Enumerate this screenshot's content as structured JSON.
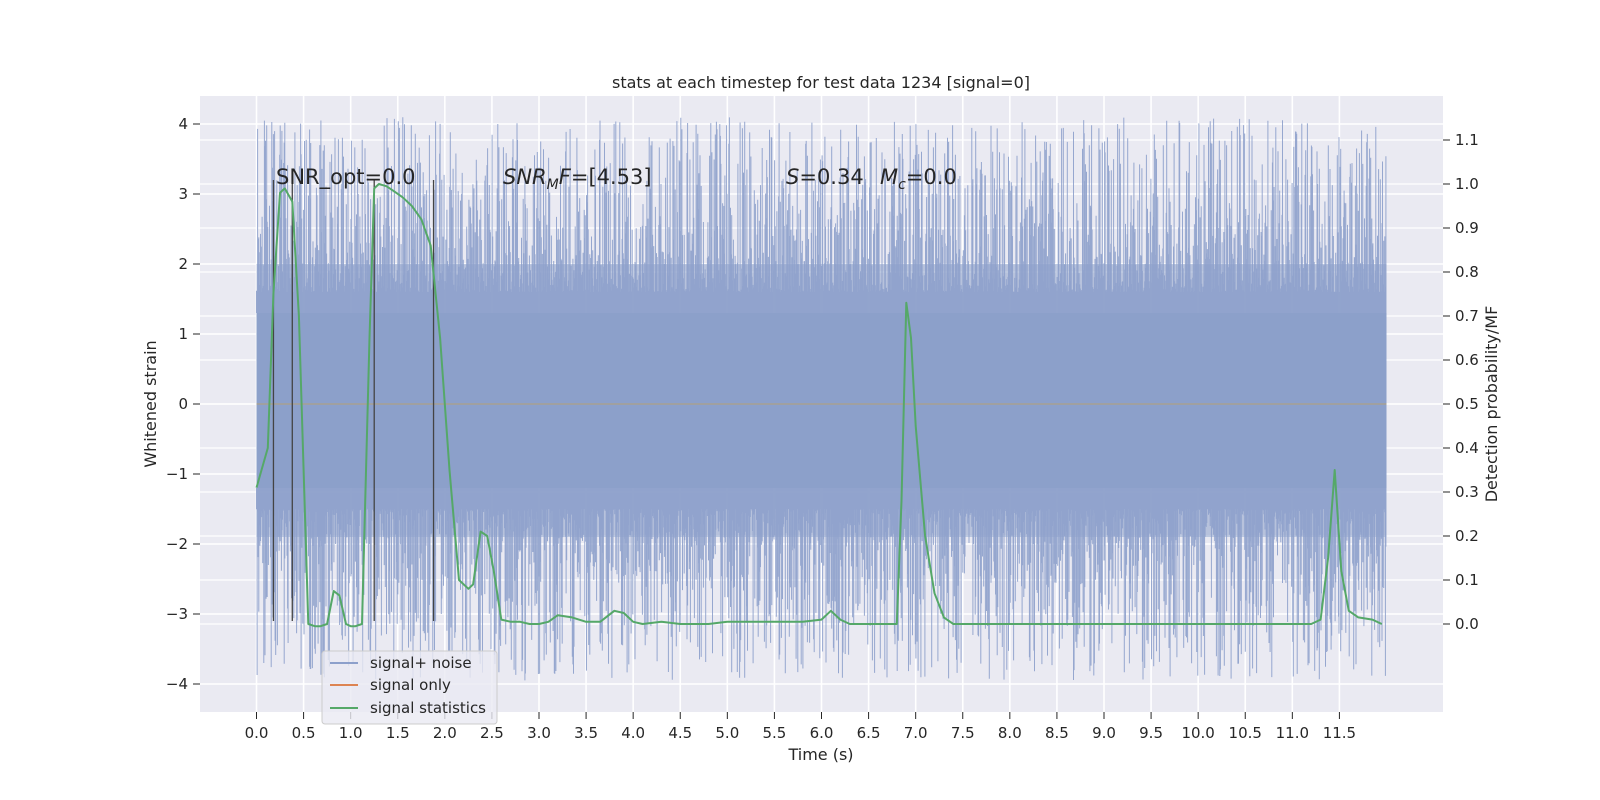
{
  "chart_data": {
    "type": "line",
    "title": "stats at each timestep for test data 1234 [signal=0]",
    "xlabel": "Time (s)",
    "ylabel": "Whitened strain",
    "y2label": "Detection probability/MF",
    "xlim": [
      -0.6,
      12.6
    ],
    "ylim": [
      -4.4,
      4.4
    ],
    "y2lim": [
      -0.2,
      1.2
    ],
    "grid": true,
    "x_ticks": [
      "0.0",
      "0.5",
      "1.0",
      "1.5",
      "2.0",
      "2.5",
      "3.0",
      "3.5",
      "4.0",
      "4.5",
      "5.0",
      "5.5",
      "6.0",
      "6.5",
      "7.0",
      "7.5",
      "8.0",
      "8.5",
      "9.0",
      "9.5",
      "10.0",
      "10.5",
      "11.0",
      "11.5"
    ],
    "y_ticks": [
      "−4",
      "−3",
      "−2",
      "−1",
      "0",
      "1",
      "2",
      "3",
      "4"
    ],
    "y2_ticks": [
      "0.0",
      "0.1",
      "0.2",
      "0.3",
      "0.4",
      "0.5",
      "0.6",
      "0.7",
      "0.8",
      "0.9",
      "1.0",
      "1.1"
    ],
    "legend_position": "lower-left",
    "annotations": {
      "snr_opt": "SNR_opt=0.0",
      "snr_mf": "[4.53]",
      "s_value": "=0.34",
      "mc_value": "=0.0"
    },
    "noise_band": {
      "x_start": 0.0,
      "x_end": 12.0,
      "typical_upper": 2.0,
      "typical_lower": -1.9,
      "dense_upper": 1.3,
      "dense_lower": -1.2,
      "max_value": 4.1,
      "min_value": -3.95
    },
    "markers_x": [
      0.18,
      0.38,
      1.25,
      1.88
    ],
    "marker_range": [
      -3.1,
      3.2
    ],
    "series": [
      {
        "name": "signal+ noise",
        "color": "#8da0cb",
        "values": "noise band (0–12 s)"
      },
      {
        "name": "signal only",
        "color": "#dd8452",
        "x": [
          0.0,
          12.0
        ],
        "y": [
          0.0,
          0.0
        ]
      },
      {
        "name": "signal statistics",
        "color": "#55a868",
        "axis": "y2",
        "x": [
          0.0,
          0.12,
          0.18,
          0.25,
          0.3,
          0.38,
          0.45,
          0.55,
          0.62,
          0.68,
          0.75,
          0.82,
          0.88,
          0.95,
          1.0,
          1.05,
          1.12,
          1.2,
          1.25,
          1.3,
          1.38,
          1.45,
          1.55,
          1.65,
          1.75,
          1.85,
          1.95,
          2.05,
          2.15,
          2.25,
          2.3,
          2.38,
          2.45,
          2.52,
          2.6,
          2.7,
          2.8,
          2.9,
          3.0,
          3.1,
          3.2,
          3.35,
          3.5,
          3.65,
          3.8,
          3.9,
          4.0,
          4.1,
          4.3,
          4.5,
          4.8,
          5.0,
          5.2,
          5.5,
          5.8,
          6.0,
          6.1,
          6.2,
          6.3,
          6.5,
          6.7,
          6.8,
          6.85,
          6.9,
          6.95,
          7.0,
          7.1,
          7.2,
          7.3,
          7.4,
          7.6,
          8.0,
          8.5,
          9.0,
          9.5,
          10.0,
          10.5,
          11.0,
          11.2,
          11.3,
          11.38,
          11.45,
          11.52,
          11.6,
          11.7,
          11.85,
          11.95
        ],
        "y": [
          0.31,
          0.4,
          0.75,
          0.98,
          0.99,
          0.96,
          0.7,
          0.0,
          -0.005,
          -0.005,
          0.0,
          0.075,
          0.065,
          0.0,
          -0.005,
          -0.005,
          0.0,
          0.65,
          0.99,
          1.0,
          0.995,
          0.985,
          0.97,
          0.95,
          0.92,
          0.86,
          0.65,
          0.35,
          0.1,
          0.08,
          0.09,
          0.21,
          0.2,
          0.12,
          0.01,
          0.005,
          0.005,
          0.0,
          0.0,
          0.005,
          0.02,
          0.015,
          0.005,
          0.005,
          0.03,
          0.025,
          0.005,
          0.0,
          0.005,
          0.0,
          0.0,
          0.005,
          0.005,
          0.005,
          0.005,
          0.01,
          0.03,
          0.01,
          0.0,
          0.0,
          0.0,
          0.0,
          0.28,
          0.73,
          0.65,
          0.45,
          0.2,
          0.07,
          0.015,
          0.0,
          0.0,
          0.0,
          0.0,
          0.0,
          0.0,
          0.0,
          0.0,
          0.0,
          0.0,
          0.01,
          0.15,
          0.35,
          0.12,
          0.03,
          0.015,
          0.01,
          0.0
        ]
      }
    ]
  }
}
